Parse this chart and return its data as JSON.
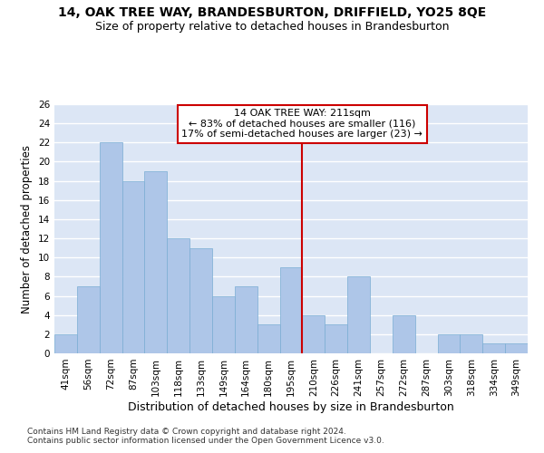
{
  "title": "14, OAK TREE WAY, BRANDESBURTON, DRIFFIELD, YO25 8QE",
  "subtitle": "Size of property relative to detached houses in Brandesburton",
  "xlabel": "Distribution of detached houses by size in Brandesburton",
  "ylabel": "Number of detached properties",
  "categories": [
    "41sqm",
    "56sqm",
    "72sqm",
    "87sqm",
    "103sqm",
    "118sqm",
    "133sqm",
    "149sqm",
    "164sqm",
    "180sqm",
    "195sqm",
    "210sqm",
    "226sqm",
    "241sqm",
    "257sqm",
    "272sqm",
    "287sqm",
    "303sqm",
    "318sqm",
    "334sqm",
    "349sqm"
  ],
  "values": [
    2,
    7,
    22,
    18,
    19,
    12,
    11,
    6,
    7,
    3,
    9,
    4,
    3,
    8,
    0,
    4,
    0,
    2,
    2,
    1,
    1
  ],
  "bar_color": "#aec6e8",
  "bar_edge_color": "#7aadd4",
  "background_color": "#dce6f5",
  "grid_color": "#ffffff",
  "vline_x_index": 11,
  "vline_color": "#cc0000",
  "annotation_box_text": "14 OAK TREE WAY: 211sqm\n← 83% of detached houses are smaller (116)\n17% of semi-detached houses are larger (23) →",
  "annotation_box_color": "#cc0000",
  "ylim": [
    0,
    26
  ],
  "yticks": [
    0,
    2,
    4,
    6,
    8,
    10,
    12,
    14,
    16,
    18,
    20,
    22,
    24,
    26
  ],
  "footnote1": "Contains HM Land Registry data © Crown copyright and database right 2024.",
  "footnote2": "Contains public sector information licensed under the Open Government Licence v3.0.",
  "title_fontsize": 10,
  "subtitle_fontsize": 9,
  "xlabel_fontsize": 9,
  "ylabel_fontsize": 8.5,
  "tick_fontsize": 7.5,
  "annotation_fontsize": 8,
  "footnote_fontsize": 6.5
}
